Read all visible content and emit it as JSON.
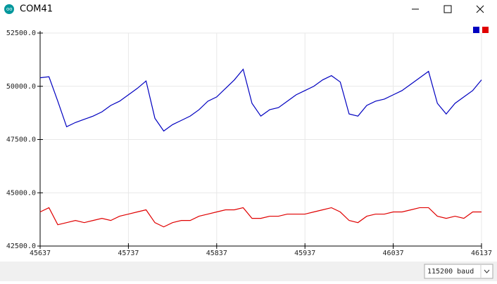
{
  "window": {
    "title": "COM41"
  },
  "baud": "115200 baud",
  "chart_data": {
    "type": "line",
    "x": [
      45637,
      45647,
      45657,
      45667,
      45677,
      45687,
      45697,
      45707,
      45717,
      45727,
      45737,
      45747,
      45757,
      45767,
      45777,
      45787,
      45797,
      45807,
      45817,
      45827,
      45837,
      45847,
      45857,
      45867,
      45877,
      45887,
      45897,
      45907,
      45917,
      45927,
      45937,
      45947,
      45957,
      45967,
      45977,
      45987,
      45997,
      46007,
      46017,
      46027,
      46037,
      46047,
      46057,
      46067,
      46077,
      46087,
      46097,
      46107,
      46117,
      46127,
      46137
    ],
    "series": [
      {
        "color": "#0000c0",
        "values": [
          50400,
          50450,
          49300,
          48100,
          48300,
          48450,
          48600,
          48800,
          49100,
          49300,
          49600,
          49900,
          50250,
          48500,
          47900,
          48200,
          48400,
          48600,
          48900,
          49300,
          49500,
          49900,
          50300,
          50800,
          49200,
          48600,
          48900,
          49000,
          49300,
          49600,
          49800,
          50000,
          50300,
          50500,
          50200,
          48700,
          48600,
          49100,
          49300,
          49400,
          49600,
          49800,
          50100,
          50400,
          50700,
          49200,
          48700,
          49200,
          49500,
          49800,
          50300
        ]
      },
      {
        "color": "#e00000",
        "values": [
          44100,
          44300,
          43500,
          43600,
          43700,
          43600,
          43700,
          43800,
          43700,
          43900,
          44000,
          44100,
          44200,
          43600,
          43400,
          43600,
          43700,
          43700,
          43900,
          44000,
          44100,
          44200,
          44200,
          44300,
          43800,
          43800,
          43900,
          43900,
          44000,
          44000,
          44000,
          44100,
          44200,
          44300,
          44100,
          43700,
          43600,
          43900,
          44000,
          44000,
          44100,
          44100,
          44200,
          44300,
          44300,
          43900,
          43800,
          43900,
          43800,
          44100,
          44100
        ]
      }
    ],
    "xlim": [
      45637,
      46137
    ],
    "xticks": [
      45637,
      45737,
      45837,
      45937,
      46037,
      46137
    ],
    "ylim": [
      42500,
      52500
    ],
    "yticks": [
      {
        "value": 42500,
        "label": "42500.0"
      },
      {
        "value": 45000,
        "label": "45000.0"
      },
      {
        "value": 47500,
        "label": "47500.0"
      },
      {
        "value": 50000,
        "label": "50000.0"
      },
      {
        "value": 52500,
        "label": "52500.0"
      }
    ],
    "grid": true
  }
}
